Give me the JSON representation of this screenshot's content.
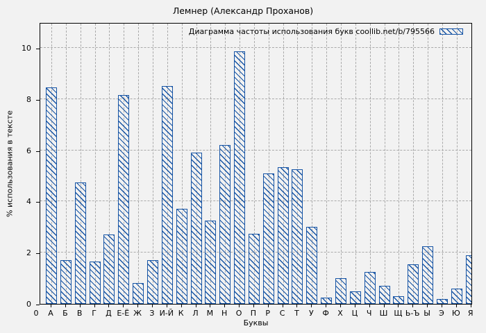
{
  "chart_data": {
    "type": "bar",
    "title": "Лемнер (Александр Проханов)",
    "legend": "Диаграмма частоты использования букв coollib.net/b/795566",
    "legend_position": "top-right",
    "xlabel": "Буквы",
    "ylabel": "% использования в тексте",
    "origin_label": "0",
    "categories": [
      "А",
      "Б",
      "В",
      "Г",
      "Д",
      "Е-Ё",
      "Ж",
      "З",
      "И-Й",
      "К",
      "Л",
      "М",
      "Н",
      "О",
      "П",
      "Р",
      "С",
      "Т",
      "У",
      "Ф",
      "Х",
      "Ц",
      "Ч",
      "Ш",
      "Щ",
      "Ь-Ъ",
      "Ы",
      "Э",
      "Ю",
      "Я"
    ],
    "values": [
      8.45,
      1.7,
      4.75,
      1.65,
      2.7,
      8.15,
      0.8,
      1.7,
      8.5,
      3.7,
      5.9,
      3.25,
      6.2,
      9.85,
      2.75,
      5.1,
      5.35,
      5.25,
      3.0,
      0.25,
      1.0,
      0.5,
      1.25,
      0.7,
      0.3,
      1.55,
      2.25,
      0.2,
      0.6,
      1.9
    ],
    "ylim": [
      0,
      11
    ],
    "yticks": [
      0,
      2,
      4,
      6,
      8,
      10
    ],
    "grid": true,
    "bar_color": "#1553a4",
    "hatch": "diagonal"
  }
}
